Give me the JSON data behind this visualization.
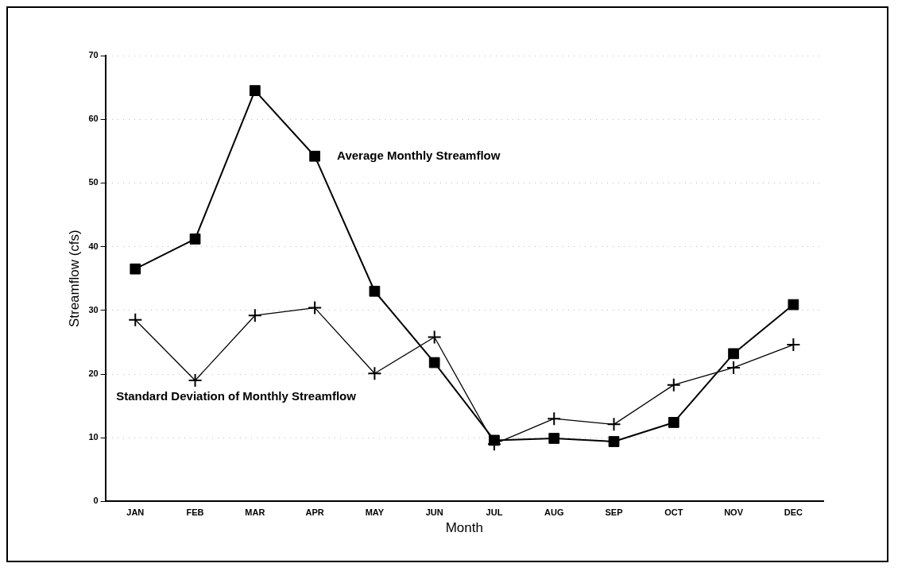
{
  "chart_data": {
    "type": "line",
    "xlabel": "Month",
    "ylabel": "Streamflow (cfs)",
    "categories": [
      "JAN",
      "FEB",
      "MAR",
      "APR",
      "MAY",
      "JUN",
      "JUL",
      "AUG",
      "SEP",
      "OCT",
      "NOV",
      "DEC"
    ],
    "series": [
      {
        "color": "#000000",
        "marker": "square",
        "values": [
          36.5,
          41.2,
          64.5,
          54.2,
          33,
          21.8,
          9.6,
          9.9,
          9.4,
          12.4,
          23.2,
          30.9
        ]
      },
      {
        "color": "#000000",
        "marker": "cross",
        "values": [
          28.5,
          19,
          29.2,
          30.4,
          20.1,
          25.8,
          9,
          13,
          12.1,
          18.3,
          21,
          24.6
        ]
      }
    ],
    "ylim": [
      0,
      70
    ],
    "yticks": [
      0,
      10,
      20,
      30,
      40,
      50,
      60,
      70
    ],
    "grid": "y",
    "legend": false,
    "annotations": [
      {
        "text": "Average Monthly Streamflow",
        "x": "APR",
        "y": 54.2
      },
      "Standard Deviation of Monthly Streamflow"
    ]
  }
}
